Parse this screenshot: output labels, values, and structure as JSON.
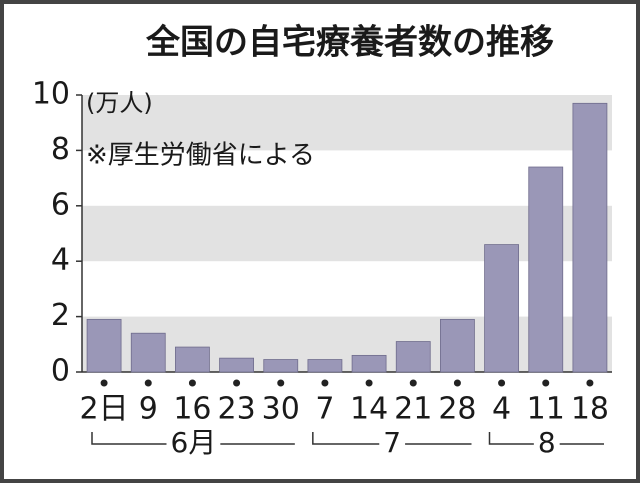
{
  "chart_data": {
    "type": "bar",
    "title": "全国の自宅療養者数の推移",
    "annotations": [
      "(万人)",
      "※厚生労働省による"
    ],
    "color": "#9a97b7",
    "grid": true,
    "ylim": [
      0,
      10
    ],
    "yticks": [
      0,
      2,
      4,
      6,
      8,
      10
    ],
    "groups": [
      {
        "label": "6月",
        "categories": [
          "2日",
          "9",
          "16",
          "23",
          "30"
        ],
        "values": [
          1.9,
          1.4,
          0.9,
          0.5,
          0.45
        ]
      },
      {
        "label": "7",
        "categories": [
          "7",
          "14",
          "21",
          "28"
        ],
        "values": [
          0.45,
          0.6,
          1.1,
          1.9
        ]
      },
      {
        "label": "8",
        "categories": [
          "4",
          "11",
          "18"
        ],
        "values": [
          4.6,
          7.4,
          9.7
        ]
      }
    ]
  }
}
